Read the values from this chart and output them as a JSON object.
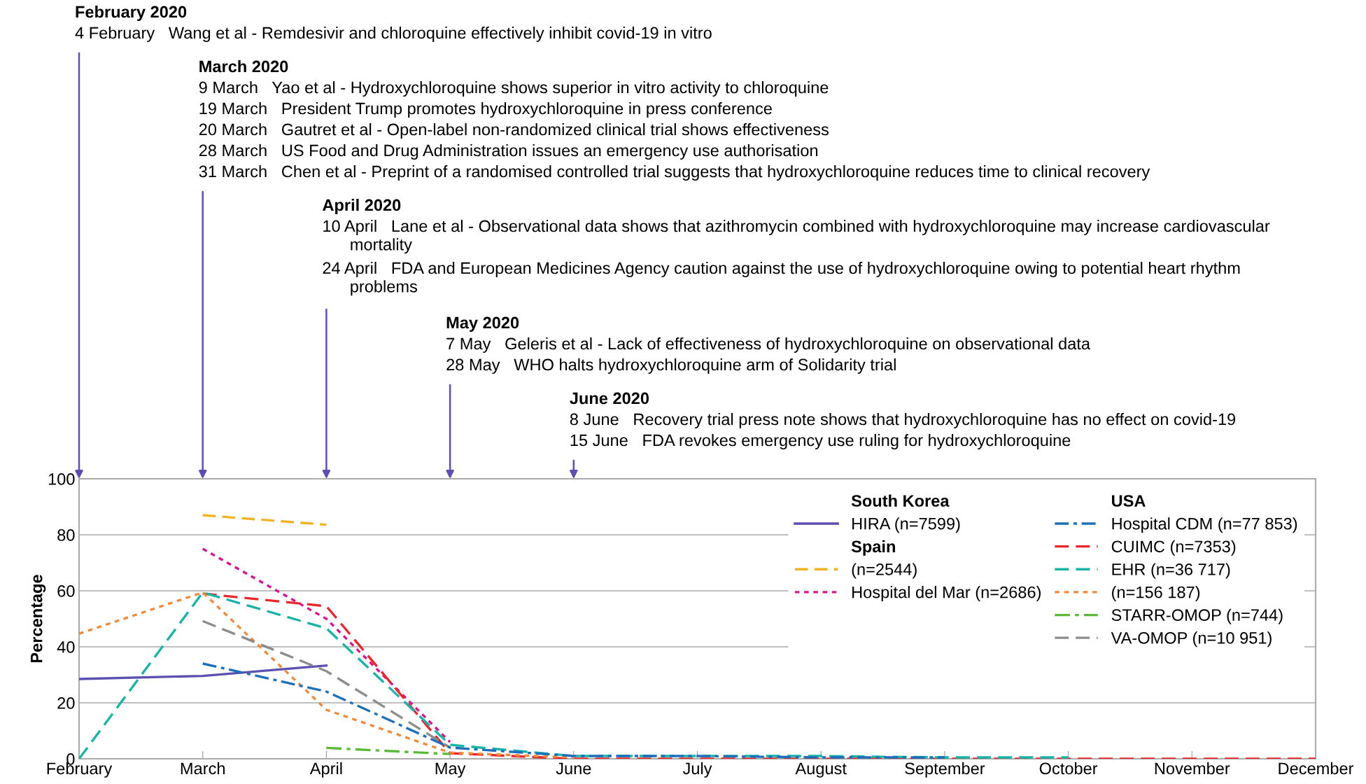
{
  "chart_data": {
    "type": "line",
    "ylabel": "Percentage",
    "categories": [
      "February",
      "March",
      "April",
      "May",
      "June",
      "July",
      "August",
      "September",
      "October",
      "November",
      "December"
    ],
    "ylim": [
      0,
      100
    ],
    "yticks": [
      0,
      20,
      40,
      60,
      80,
      100
    ],
    "grid": "y",
    "legend": "top right",
    "marker": "none",
    "series": [
      {
        "name": "HIRA (n=7599)",
        "color": "#5b4fb0",
        "line_style": "solid",
        "values": [
          28.5,
          29.6,
          33.3,
          null,
          null,
          null,
          null,
          null,
          null,
          null,
          null
        ]
      },
      {
        "name": "(n=2544)",
        "color": "#f0b323",
        "line_style": "dashed",
        "values": [
          null,
          87,
          83.6,
          null,
          null,
          null,
          null,
          null,
          null,
          null,
          null
        ]
      },
      {
        "name": "Hospital del Mar (n=2686)",
        "color": "#d6168c",
        "line_style": "dotted",
        "values": [
          null,
          75,
          50,
          6,
          null,
          null,
          null,
          null,
          null,
          null,
          null
        ]
      },
      {
        "name": "Hospital CDM (n=77 853)",
        "color": "#1f6fb8",
        "line_style": "dashdot",
        "values": [
          null,
          34,
          24,
          4,
          1,
          1,
          0.5,
          0.5,
          null,
          null,
          null
        ]
      },
      {
        "name": "CUIMC (n=7353)",
        "color": "#e8262b",
        "line_style": "dashed",
        "values": [
          null,
          59,
          54.5,
          2,
          0,
          0,
          0,
          0,
          0,
          0,
          0
        ]
      },
      {
        "name": "EHR (n=36 717)",
        "color": "#1ab3a6",
        "line_style": "dashed",
        "values": [
          0,
          59.4,
          46.6,
          5,
          1,
          1,
          1,
          0.5,
          0.5,
          null,
          null
        ]
      },
      {
        "name": "(n=156 187)",
        "color": "#f08a3c",
        "line_style": "dotted",
        "values": [
          44.7,
          59.4,
          17.5,
          2.2,
          0.5,
          null,
          null,
          null,
          null,
          null,
          null
        ]
      },
      {
        "name": "STARR-OMOP (n=744)",
        "color": "#5cb83a",
        "line_style": "dashdot",
        "values": [
          null,
          null,
          3.9,
          1.7,
          null,
          null,
          null,
          null,
          null,
          null,
          null
        ]
      },
      {
        "name": "VA-OMOP (n=10 951)",
        "color": "#8c8c8c",
        "line_style": "dashed",
        "values": [
          null,
          49.2,
          31.3,
          4,
          null,
          null,
          null,
          null,
          null,
          null,
          null
        ]
      }
    ],
    "annotations": [
      "February 2020",
      "4 February   Wang et al - Remdesivir and chloroquine effectively inhibit covid-19 in vitro",
      "March 2020",
      "9 March   Yao et al - Hydroxychloroquine shows superior in vitro activity to chloroquine",
      "19 March   President Trump promotes hydroxychloroquine in press conference",
      "20 March   Gautret et al - Open-label non-randomized clinical trial shows effectiveness",
      "28 March   US Food and Drug Administration issues an emergency use authorisation",
      "31 March   Chen et al - Preprint of a randomised controlled trial suggests that hydroxychloroquine reduces time to clinical recovery",
      "April 2020",
      "10 April   Lane et al - Observational data shows that azithromycin combined with hydroxychloroquine may increase cardiovascular mortality",
      "24 April   FDA and European Medicines Agency caution against the use of hydroxychloroquine owing to potential heart rhythm problems",
      "May 2020",
      "7 May   Geleris et al - Lack of effectiveness of hydroxychloroquine on observational data",
      "28 May   WHO halts hydroxychloroquine arm of Solidarity trial",
      "June 2020",
      "8 June   Recovery trial press note shows that hydroxychloroquine has no effect on covid-19",
      "15 June   FDA revokes emergency use ruling for hydroxychloroquine",
      "South Korea",
      "Spain",
      "USA"
    ]
  }
}
